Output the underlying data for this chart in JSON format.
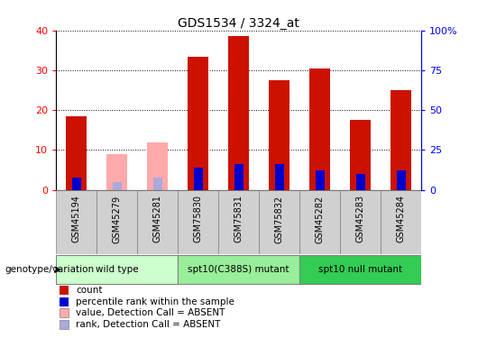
{
  "title": "GDS1534 / 3324_at",
  "samples": [
    "GSM45194",
    "GSM45279",
    "GSM45281",
    "GSM75830",
    "GSM75831",
    "GSM75832",
    "GSM45282",
    "GSM45283",
    "GSM45284"
  ],
  "count_values": [
    18.5,
    0,
    0,
    33.5,
    38.5,
    27.5,
    30.5,
    17.5,
    25.0
  ],
  "rank_values": [
    3.0,
    0,
    0,
    5.5,
    6.5,
    6.5,
    5.0,
    4.0,
    5.0
  ],
  "absent_count": [
    0,
    9.0,
    12.0,
    0,
    0,
    0,
    0,
    0,
    0
  ],
  "absent_rank": [
    0,
    2.0,
    3.0,
    0,
    0,
    0,
    0,
    0,
    0
  ],
  "groups": [
    {
      "label": "wild type",
      "indices": [
        0,
        1,
        2
      ],
      "color": "#ccffcc"
    },
    {
      "label": "spt10(C388S) mutant",
      "indices": [
        3,
        4,
        5
      ],
      "color": "#99ee99"
    },
    {
      "label": "spt10 null mutant",
      "indices": [
        6,
        7,
        8
      ],
      "color": "#33cc55"
    }
  ],
  "ylim_left": [
    0,
    40
  ],
  "ylim_right": [
    0,
    100
  ],
  "yticks_left": [
    0,
    10,
    20,
    30,
    40
  ],
  "yticks_right": [
    0,
    25,
    50,
    75,
    100
  ],
  "color_count": "#cc1100",
  "color_rank": "#0000cc",
  "color_absent_count": "#ffaaaa",
  "color_absent_rank": "#aaaadd",
  "bar_width": 0.5,
  "label_cell_color": "#d0d0d0"
}
